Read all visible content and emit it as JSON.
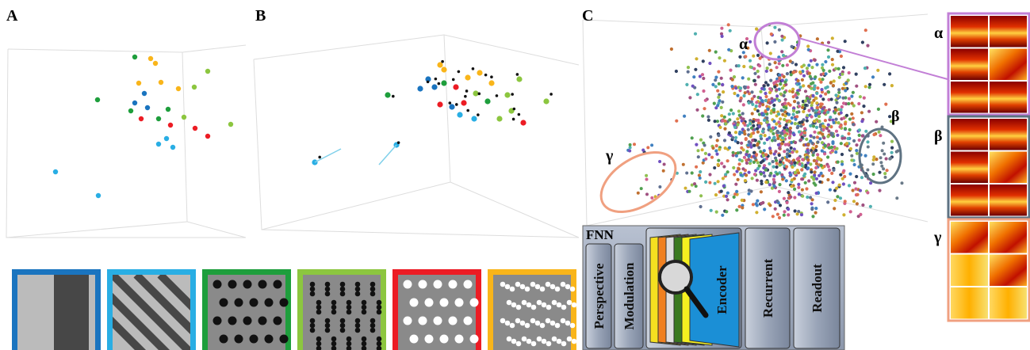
{
  "panels": [
    {
      "label": "A"
    },
    {
      "label": "B"
    },
    {
      "label": "C"
    }
  ],
  "clusters": [
    {
      "label": "α"
    },
    {
      "label": "β"
    },
    {
      "label": "γ"
    }
  ],
  "heatmaps": [
    {
      "label": "α"
    },
    {
      "label": "β"
    },
    {
      "label": "γ"
    }
  ],
  "fnn": {
    "title": "FNN",
    "modules": [
      "Perspective",
      "Modulation",
      "Encoder",
      "Recurrent",
      "Readout"
    ]
  }
}
